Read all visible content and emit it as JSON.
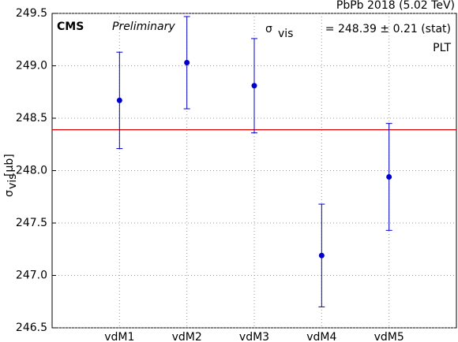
{
  "chart_data": {
    "type": "errorbar",
    "title": "PbPb 2018 (5.02 TeV)",
    "experiment": "CMS",
    "status": "Preliminary",
    "annotation": {
      "symbol": "σ",
      "subscript": "vis",
      "text": "= 248.39 ± 0.21 (stat)"
    },
    "detector": "PLT",
    "ylabel": {
      "symbol": "σ",
      "subscript": "vis",
      "unit": "[μb]"
    },
    "categories": [
      "vdM1",
      "vdM2",
      "vdM3",
      "vdM4",
      "vdM5"
    ],
    "values": [
      248.67,
      249.03,
      248.81,
      247.19,
      247.94
    ],
    "errors": [
      0.46,
      0.44,
      0.45,
      0.49,
      0.51
    ],
    "color": "#0000cc",
    "reference_line": 248.39,
    "reference_color": "#dd0000",
    "ylim": [
      246.5,
      249.5
    ],
    "yticks": [
      246.5,
      {
        "value": 247.0,
        "label": "247.0"
      },
      247.5,
      {
        "value": 248.0,
        "label": "248.0"
      },
      248.5,
      {
        "value": 249.0,
        "label": "249.0"
      },
      249.5
    ],
    "grid": true
  }
}
